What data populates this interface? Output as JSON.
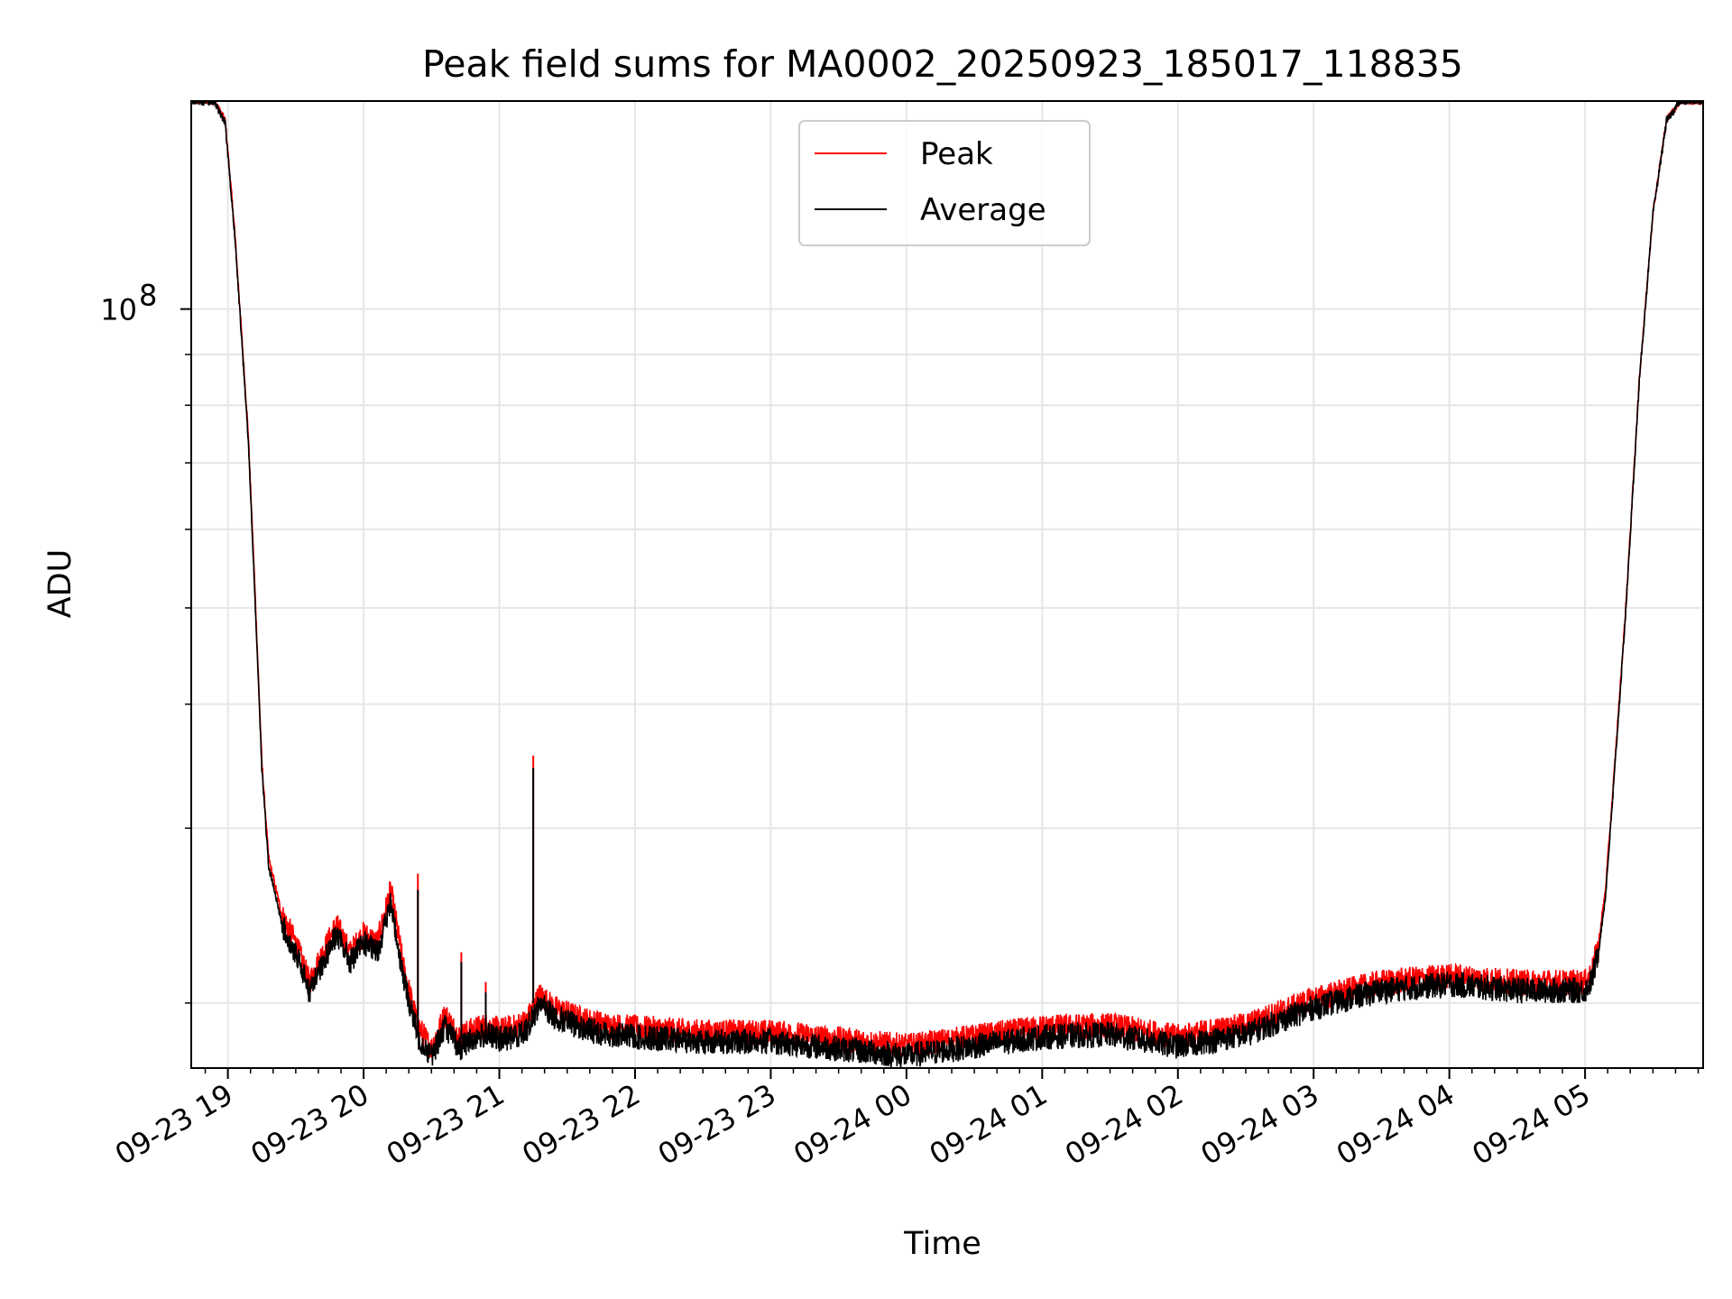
{
  "chart_data": {
    "type": "line",
    "title": "Peak field sums for MA0002_20250923_185017_118835",
    "xlabel": "Time",
    "ylabel": "ADU",
    "yscale": "log",
    "ylim": [
      17200000,
      162000000
    ],
    "xlim_hours": [
      18.73,
      29.87
    ],
    "grid": true,
    "legend_position": "top-center",
    "x_ticks": [
      {
        "value": 19,
        "label": "09-23 19"
      },
      {
        "value": 20,
        "label": "09-23 20"
      },
      {
        "value": 21,
        "label": "09-23 21"
      },
      {
        "value": 22,
        "label": "09-23 22"
      },
      {
        "value": 23,
        "label": "09-23 23"
      },
      {
        "value": 24,
        "label": "09-24 00"
      },
      {
        "value": 25,
        "label": "09-24 01"
      },
      {
        "value": 26,
        "label": "09-24 02"
      },
      {
        "value": 27,
        "label": "09-24 03"
      },
      {
        "value": 28,
        "label": "09-24 04"
      },
      {
        "value": 29,
        "label": "09-24 05"
      }
    ],
    "y_major_ticks": [
      {
        "value": 100000000,
        "base": "10",
        "exp": "8"
      }
    ],
    "y_minor_ticks": [
      20000000,
      30000000,
      40000000,
      50000000,
      60000000,
      70000000,
      80000000,
      90000000
    ],
    "x_hours": [
      18.73,
      18.83,
      18.9,
      18.98,
      19.05,
      19.1,
      19.15,
      19.2,
      19.25,
      19.3,
      19.4,
      19.5,
      19.6,
      19.7,
      19.8,
      19.9,
      20.0,
      20.1,
      20.2,
      20.3,
      20.4,
      20.5,
      20.6,
      20.7,
      20.8,
      20.9,
      21.0,
      21.1,
      21.2,
      21.3,
      21.4,
      21.6,
      21.8,
      22.0,
      22.5,
      23.0,
      23.5,
      24.0,
      24.5,
      25.0,
      25.5,
      26.0,
      26.5,
      27.0,
      27.5,
      28.0,
      28.5,
      29.0,
      29.05,
      29.1,
      29.15,
      29.2,
      29.3,
      29.4,
      29.5,
      29.6,
      29.7,
      29.87
    ],
    "series": [
      {
        "name": "Peak",
        "color": "#ff0000",
        "values": [
          162000000,
          162000000,
          162000000,
          155000000,
          120000000,
          95000000,
          75000000,
          52000000,
          35000000,
          28000000,
          24500000,
          23000000,
          21000000,
          22500000,
          24000000,
          22500000,
          23500000,
          23000000,
          26000000,
          21500000,
          19000000,
          18000000,
          19500000,
          18500000,
          18800000,
          19000000,
          18800000,
          18900000,
          19200000,
          20400000,
          19800000,
          19300000,
          19000000,
          18900000,
          18700000,
          18700000,
          18400000,
          18100000,
          18500000,
          18900000,
          19000000,
          18500000,
          19000000,
          20200000,
          21000000,
          21300000,
          21000000,
          21000000,
          21500000,
          23000000,
          26000000,
          32000000,
          50000000,
          85000000,
          125000000,
          155000000,
          162000000,
          162000000
        ]
      },
      {
        "name": "Average",
        "color": "#000000",
        "values": [
          162000000,
          162000000,
          162000000,
          154000000,
          119000000,
          94000000,
          74000000,
          51000000,
          34500000,
          27500000,
          24000000,
          22500000,
          20600000,
          22000000,
          23500000,
          22000000,
          23000000,
          22500000,
          25200000,
          21000000,
          18500000,
          17700000,
          19000000,
          18000000,
          18400000,
          18600000,
          18400000,
          18500000,
          18800000,
          20000000,
          19400000,
          18900000,
          18600000,
          18500000,
          18300000,
          18300000,
          18000000,
          17700000,
          18100000,
          18500000,
          18600000,
          18100000,
          18600000,
          19800000,
          20600000,
          20900000,
          20600000,
          20600000,
          21100000,
          22600000,
          25600000,
          31600000,
          49600000,
          84600000,
          124600000,
          154600000,
          162000000,
          162000000
        ]
      }
    ],
    "spikes": [
      {
        "x": 20.4,
        "peak": 27000000,
        "average": 26000000
      },
      {
        "x": 20.72,
        "peak": 22500000,
        "average": 22000000
      },
      {
        "x": 20.9,
        "peak": 21000000,
        "average": 20500000
      },
      {
        "x": 21.25,
        "peak": 35500000,
        "average": 34500000
      }
    ]
  }
}
